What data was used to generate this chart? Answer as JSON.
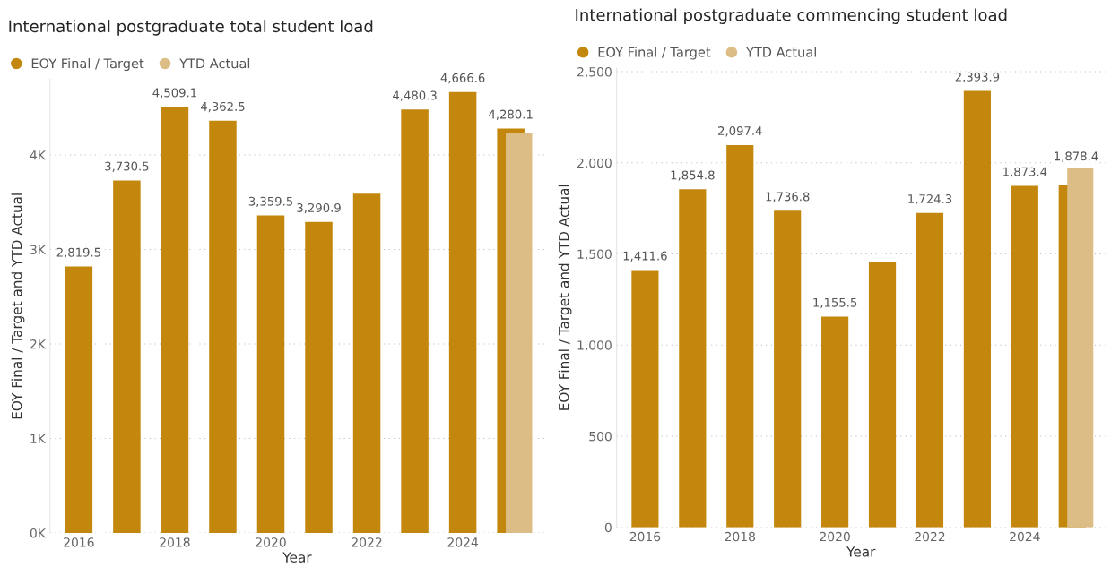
{
  "chart_data": [
    {
      "type": "bar",
      "title": "International postgraduate total student load",
      "xlabel": "Year",
      "ylabel": "EOY Final / Target and YTD Actual",
      "categories": [
        "2016",
        null,
        "2018",
        null,
        "2020",
        null,
        "2022",
        null,
        "2024",
        null
      ],
      "series": [
        {
          "name": "EOY Final / Target",
          "color": "#c4870e",
          "values": [
            2819.5,
            3730.5,
            4509.1,
            4362.5,
            3359.5,
            3290.9,
            3590,
            4480.3,
            4666.6,
            4280.1
          ],
          "value_labels": [
            "2,819.5",
            "3,730.5",
            "4,509.1",
            "4,362.5",
            "3,359.5",
            "3,290.9",
            null,
            "4,480.3",
            "4,666.6",
            "4,280.1"
          ]
        },
        {
          "name": "YTD Actual",
          "color": "#dcbd85",
          "values": [
            null,
            null,
            null,
            null,
            null,
            null,
            null,
            null,
            null,
            4230
          ]
        }
      ],
      "ylim": [
        0,
        4800
      ],
      "yticks": [
        {
          "value": 0,
          "label": "0K"
        },
        {
          "value": 1000,
          "label": "1K"
        },
        {
          "value": 2000,
          "label": "2K"
        },
        {
          "value": 3000,
          "label": "3K"
        },
        {
          "value": 4000,
          "label": "4K"
        }
      ],
      "grid": "y",
      "legend": "top left"
    },
    {
      "type": "bar",
      "title": "International postgraduate commencing student load",
      "xlabel": "Year",
      "ylabel": "EOY Final / Target and YTD Actual",
      "categories": [
        "2016",
        null,
        "2018",
        null,
        "2020",
        null,
        "2022",
        null,
        "2024",
        null
      ],
      "series": [
        {
          "name": "EOY Final / Target",
          "color": "#c4870e",
          "values": [
            1411.6,
            1854.8,
            2097.4,
            1736.8,
            1155.5,
            1458,
            1724.3,
            2393.9,
            1873.4,
            1878.4
          ],
          "value_labels": [
            "1,411.6",
            "1,854.8",
            "2,097.4",
            "1,736.8",
            "1,155.5",
            null,
            "1,724.3",
            "2,393.9",
            "1,873.4",
            "1,878.4"
          ]
        },
        {
          "name": "YTD Actual",
          "color": "#dcbd85",
          "values": [
            null,
            null,
            null,
            null,
            null,
            null,
            null,
            null,
            null,
            1972
          ]
        }
      ],
      "ylim": [
        0,
        2520
      ],
      "yticks": [
        {
          "value": 0,
          "label": "0"
        },
        {
          "value": 500,
          "label": "500"
        },
        {
          "value": 1000,
          "label": "1,000"
        },
        {
          "value": 1500,
          "label": "1,500"
        },
        {
          "value": 2000,
          "label": "2,000"
        },
        {
          "value": 2500,
          "label": "2,500"
        }
      ],
      "grid": "y",
      "legend": "top left"
    }
  ]
}
